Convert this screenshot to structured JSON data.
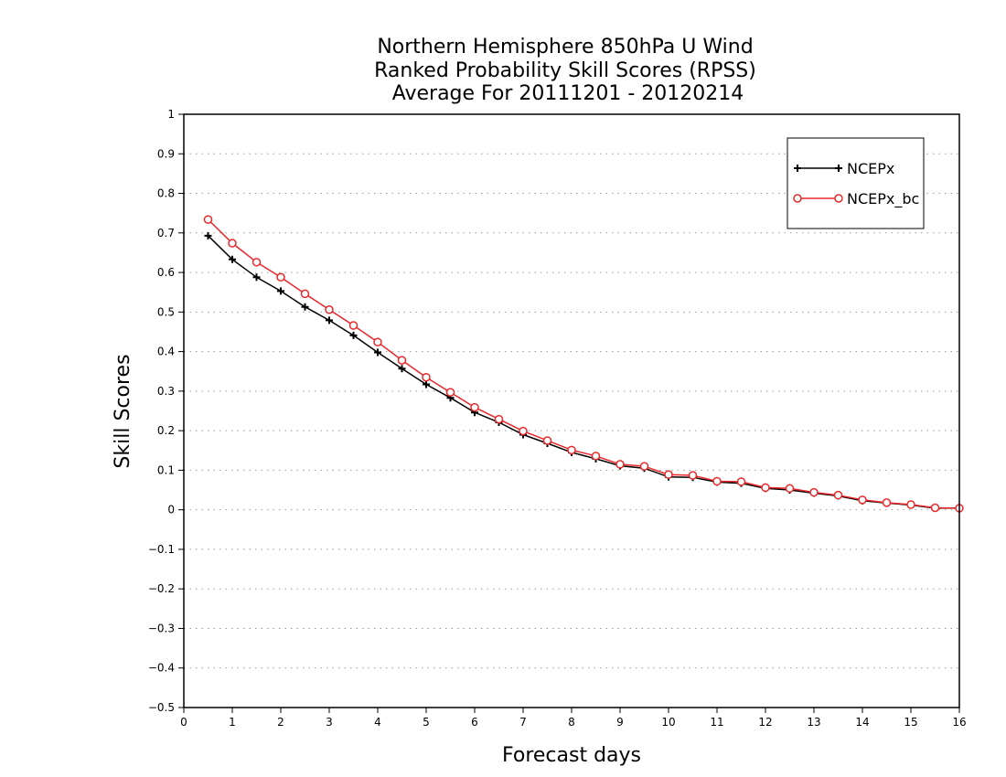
{
  "chart_data": {
    "type": "line",
    "title_lines": [
      "Northern Hemisphere 850hPa U Wind",
      "Ranked Probability Skill Scores (RPSS)",
      "Average For 20111201 - 20120214"
    ],
    "xlabel": "Forecast days",
    "ylabel": "Skill Scores",
    "xlim": [
      0,
      16
    ],
    "ylim": [
      -0.5,
      1
    ],
    "xticks": [
      "0",
      "1",
      "2",
      "3",
      "4",
      "5",
      "6",
      "7",
      "8",
      "9",
      "10",
      "11",
      "12",
      "13",
      "14",
      "15",
      "16"
    ],
    "yticks": [
      "1",
      "0.9",
      "0.8",
      "0.7",
      "0.6",
      "0.5",
      "0.4",
      "0.3",
      "0.2",
      "0.1",
      "0",
      "−0.1",
      "−0.2",
      "−0.3",
      "−0.4",
      "−0.5"
    ],
    "ytick_values": [
      1,
      0.9,
      0.8,
      0.7,
      0.6,
      0.5,
      0.4,
      0.3,
      0.2,
      0.1,
      0,
      -0.1,
      -0.2,
      -0.3,
      -0.4,
      -0.5
    ],
    "grid": "horizontal-dotted",
    "legend_position": "top-right",
    "x": [
      0.5,
      1,
      1.5,
      2,
      2.5,
      3,
      3.5,
      4,
      4.5,
      5,
      5.5,
      6,
      6.5,
      7,
      7.5,
      8,
      8.5,
      9,
      9.5,
      10,
      10.5,
      11,
      11.5,
      12,
      12.5,
      13,
      13.5,
      14,
      14.5,
      15,
      15.5,
      16
    ],
    "series": [
      {
        "name": "NCEPx",
        "color": "#000000",
        "marker": "plus",
        "values": [
          0.693,
          0.633,
          0.588,
          0.553,
          0.513,
          0.479,
          0.441,
          0.398,
          0.357,
          0.317,
          0.283,
          0.246,
          0.221,
          0.19,
          0.168,
          0.145,
          0.129,
          0.111,
          0.105,
          0.083,
          0.082,
          0.07,
          0.067,
          0.054,
          0.05,
          0.042,
          0.035,
          0.023,
          0.017,
          0.012,
          0.004,
          0.004
        ]
      },
      {
        "name": "NCEPx_bc",
        "color": "#e8282a",
        "marker": "circle",
        "values": [
          0.734,
          0.674,
          0.626,
          0.588,
          0.546,
          0.506,
          0.466,
          0.424,
          0.378,
          0.335,
          0.297,
          0.259,
          0.229,
          0.199,
          0.175,
          0.151,
          0.136,
          0.115,
          0.11,
          0.089,
          0.087,
          0.072,
          0.071,
          0.056,
          0.054,
          0.044,
          0.037,
          0.025,
          0.018,
          0.013,
          0.005,
          0.004
        ]
      }
    ]
  }
}
